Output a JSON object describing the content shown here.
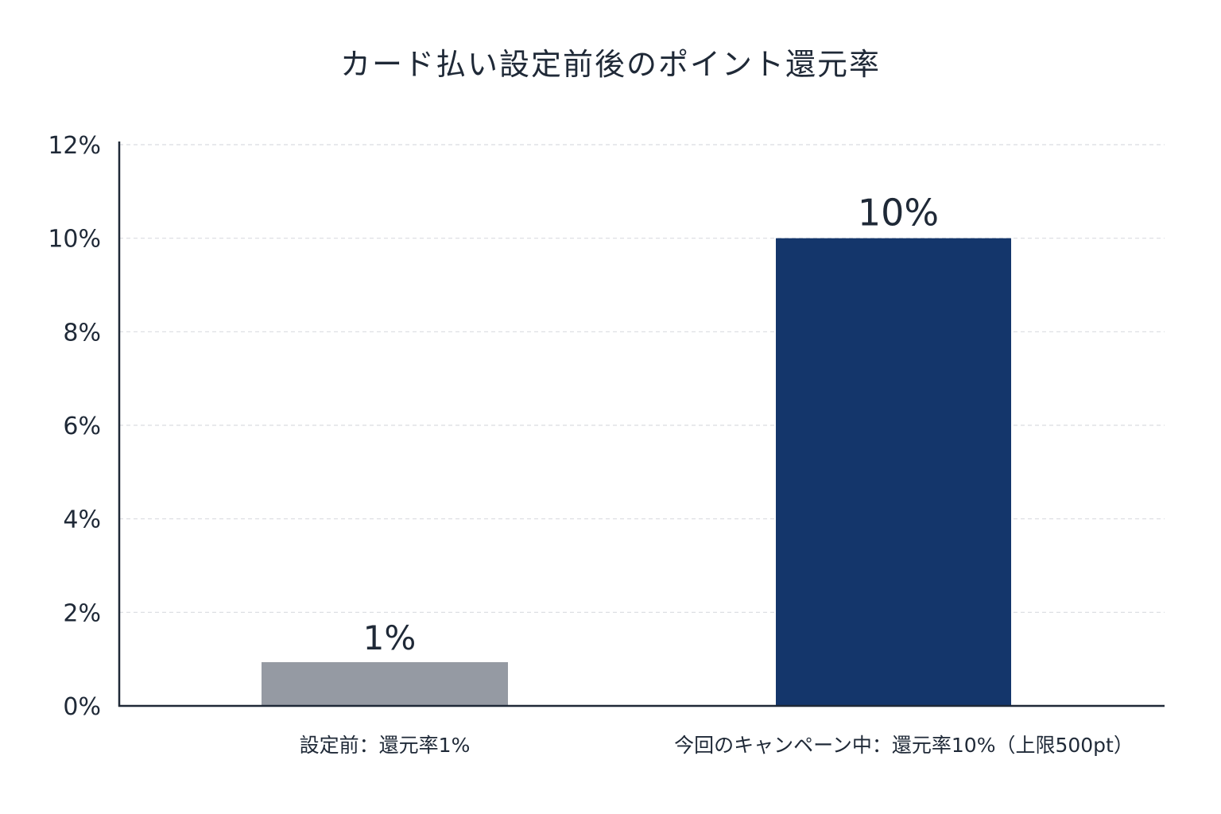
{
  "chart_data": {
    "type": "bar",
    "title": "カード払い設定前後のポイント還元率",
    "categories": [
      "設定前：還元率1%",
      "今回のキャンペーン中：還元率10%（上限500pt）"
    ],
    "values": [
      1,
      10
    ],
    "data_labels": [
      "1%",
      "10%"
    ],
    "yticks": [
      "0%",
      "2%",
      "4%",
      "6%",
      "8%",
      "10%",
      "12%"
    ],
    "ytick_values": [
      0,
      2,
      4,
      6,
      8,
      10,
      12
    ],
    "xlabel": "",
    "ylabel": "",
    "ylim": [
      0,
      12
    ],
    "grid": true,
    "bar_colors": [
      "#959aa3",
      "#14366b"
    ],
    "grid_color": "#d9dce1",
    "axis_color": "#1f2937"
  }
}
